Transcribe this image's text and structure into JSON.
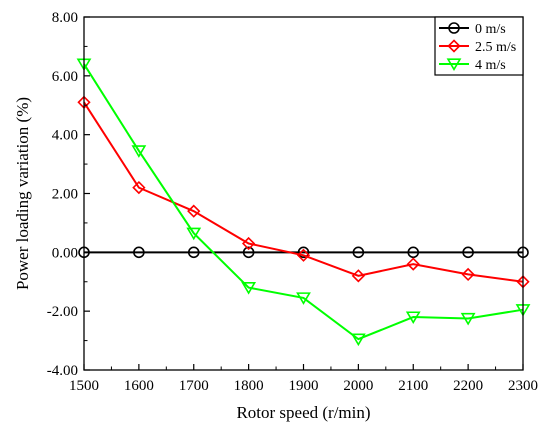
{
  "chart_data": {
    "type": "line",
    "xlabel": "Rotor speed (r/min)",
    "ylabel": "Power loading variation (%)",
    "xlim": [
      1500,
      2300
    ],
    "ylim": [
      -4,
      8
    ],
    "x_ticks": [
      1500,
      1600,
      1700,
      1800,
      1900,
      2000,
      2100,
      2200,
      2300
    ],
    "y_ticks": [
      "-4.00",
      "-2.00",
      "0.00",
      "2.00",
      "4.00",
      "6.00",
      "8.00"
    ],
    "x": [
      1500,
      1600,
      1700,
      1800,
      1900,
      2000,
      2100,
      2200,
      2300
    ],
    "grid": false,
    "legend_position": "top-right",
    "series": [
      {
        "name": "0 m/s",
        "color": "#000000",
        "marker": "circle",
        "values": [
          0,
          0,
          0,
          0,
          0,
          0,
          0,
          0,
          0
        ]
      },
      {
        "name": "2.5 m/s",
        "color": "#ff0000",
        "marker": "diamond",
        "values": [
          5.1,
          2.2,
          1.4,
          0.3,
          -0.1,
          -0.8,
          -0.4,
          -0.75,
          -1.0
        ]
      },
      {
        "name": "4 m/s",
        "color": "#00ff00",
        "marker": "triangle-down",
        "values": [
          6.4,
          3.45,
          0.65,
          -1.2,
          -1.55,
          -2.95,
          -2.2,
          -2.25,
          -1.95
        ]
      }
    ]
  }
}
